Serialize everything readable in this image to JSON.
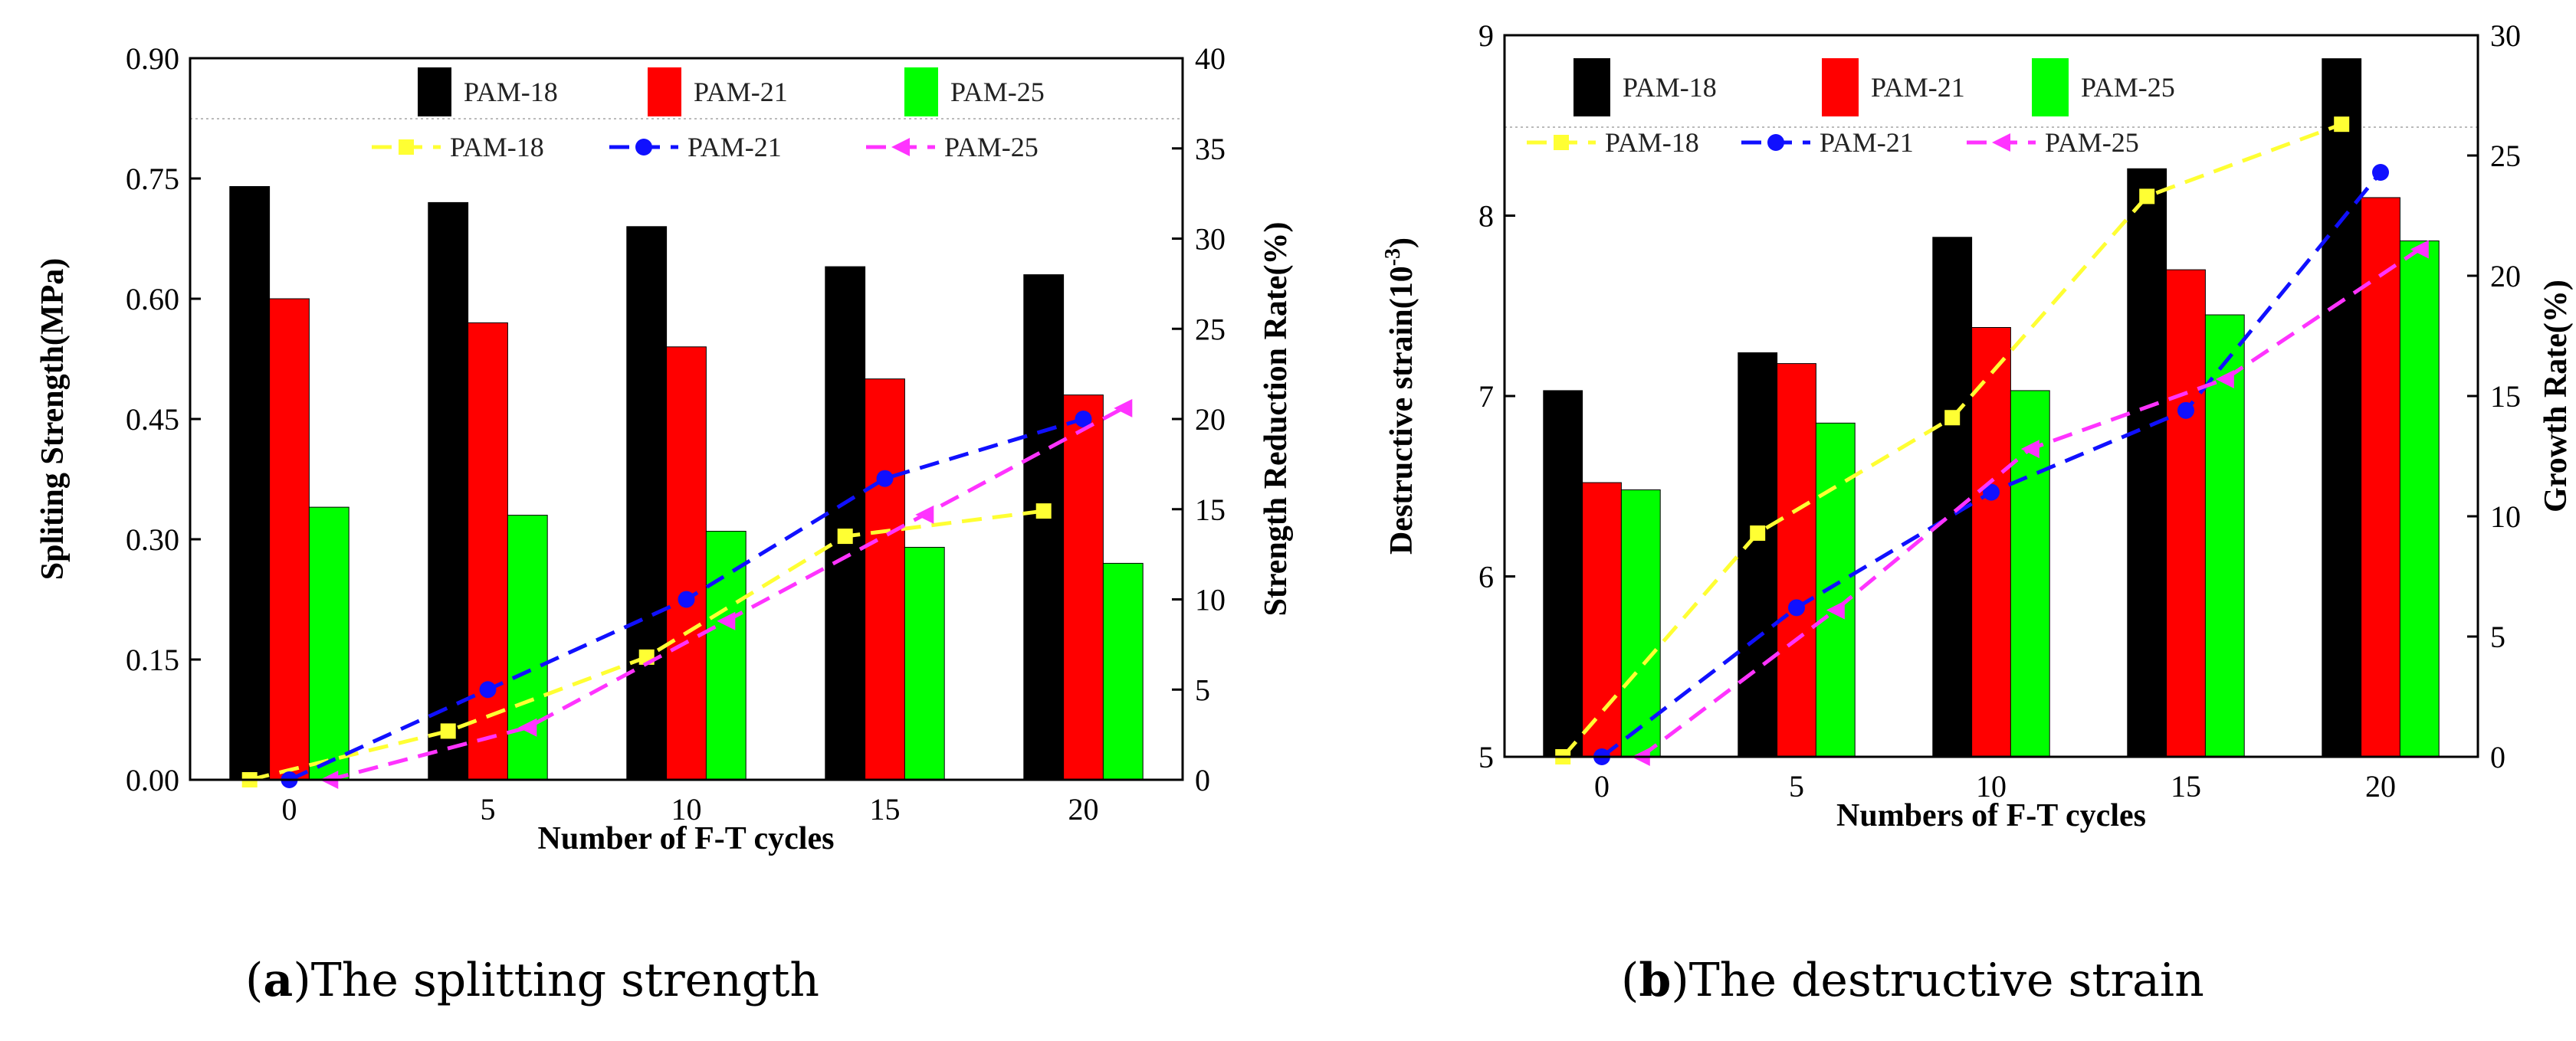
{
  "chart_data": [
    {
      "type": "bar",
      "caption_letter": "a",
      "caption_text": ")The splitting strength",
      "xlabel": "Number of F-T cycles",
      "ylabel": "Spliting Strength(MPa)",
      "y2label": "Strength Reduction Rate(%)",
      "categories": [
        "0",
        "5",
        "10",
        "15",
        "20"
      ],
      "x": [
        0,
        5,
        10,
        15,
        20
      ],
      "xlim": [
        -2.5,
        22.5
      ],
      "ylim": [
        0,
        0.9
      ],
      "yticks": [
        "0.00",
        "0.15",
        "0.30",
        "0.45",
        "0.60",
        "0.75",
        "0.90"
      ],
      "y2lim": [
        0,
        40
      ],
      "y2ticks": [
        "0",
        "5",
        "10",
        "15",
        "20",
        "25",
        "30",
        "35",
        "40"
      ],
      "bar_width": 1.0,
      "series": [
        {
          "name": "PAM-18",
          "color": "#000000",
          "values": [
            0.74,
            0.72,
            0.69,
            0.64,
            0.63
          ]
        },
        {
          "name": "PAM-21",
          "color": "#ff0000",
          "values": [
            0.6,
            0.57,
            0.54,
            0.5,
            0.48
          ]
        },
        {
          "name": "PAM-25",
          "color": "#00ff00",
          "values": [
            0.34,
            0.33,
            0.31,
            0.29,
            0.27
          ]
        }
      ],
      "line_series": [
        {
          "name": "PAM-18",
          "color": "#ffff33",
          "marker": "square",
          "x": [
            -1,
            4,
            9,
            14,
            19
          ],
          "values": [
            0,
            2.7,
            6.8,
            13.5,
            14.9
          ]
        },
        {
          "name": "PAM-21",
          "color": "#1010ff",
          "marker": "circle",
          "x": [
            0,
            5,
            10,
            15,
            20
          ],
          "values": [
            0,
            5,
            10,
            16.7,
            20
          ]
        },
        {
          "name": "PAM-25",
          "color": "#ff33ff",
          "marker": "triangle-left",
          "x": [
            1,
            6,
            11,
            16,
            21
          ],
          "values": [
            0,
            2.9,
            8.8,
            14.7,
            20.6
          ]
        }
      ]
    },
    {
      "type": "bar",
      "caption_letter": "b",
      "caption_text": ")The destructive strain",
      "xlabel": "Numbers of F-T cycles",
      "ylabel": "Destructive strain(10",
      "ylabel_sup": "-3",
      "ylabel_end": ")",
      "y2label": "Growth Rate(%)",
      "categories": [
        "0",
        "5",
        "10",
        "15",
        "20"
      ],
      "x": [
        0,
        5,
        10,
        15,
        20
      ],
      "xlim": [
        -2.5,
        22.5
      ],
      "ylim": [
        5,
        9
      ],
      "yticks": [
        "5",
        "6",
        "7",
        "8",
        "9"
      ],
      "y2lim": [
        0,
        30
      ],
      "y2ticks": [
        "0",
        "5",
        "10",
        "15",
        "20",
        "25",
        "30"
      ],
      "bar_width": 1.0,
      "series": [
        {
          "name": "PAM-18",
          "color": "#000000",
          "values": [
            7.03,
            7.24,
            7.88,
            8.26,
            8.87
          ]
        },
        {
          "name": "PAM-21",
          "color": "#ff0000",
          "values": [
            6.52,
            7.18,
            7.38,
            7.7,
            8.1
          ]
        },
        {
          "name": "PAM-25",
          "color": "#00ff00",
          "values": [
            6.48,
            6.85,
            7.03,
            7.45,
            7.86
          ]
        }
      ],
      "line_series": [
        {
          "name": "PAM-18",
          "color": "#ffff33",
          "marker": "square",
          "x": [
            -1,
            4,
            9,
            14,
            19
          ],
          "values": [
            0,
            9.3,
            14.1,
            23.3,
            26.3
          ]
        },
        {
          "name": "PAM-21",
          "color": "#1010ff",
          "marker": "circle",
          "x": [
            0,
            5,
            10,
            15,
            20
          ],
          "values": [
            0,
            6.2,
            11.0,
            14.4,
            24.3
          ]
        },
        {
          "name": "PAM-25",
          "color": "#ff33ff",
          "marker": "triangle-left",
          "x": [
            1,
            6,
            11,
            16,
            21
          ],
          "values": [
            0,
            6.1,
            12.8,
            15.7,
            21.1
          ]
        }
      ]
    }
  ]
}
